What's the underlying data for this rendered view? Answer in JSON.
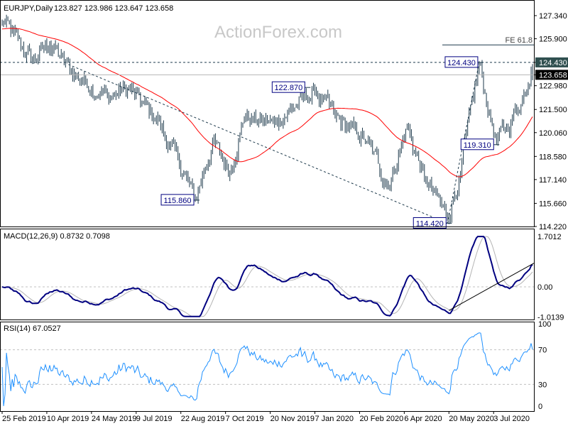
{
  "header": {
    "symbol_tf": "EURJPY,Daily",
    "ohlc": "123.827 123.986 123.647 123.658"
  },
  "watermark": "ActionForex.com",
  "colors": {
    "bars": "#1e3a4c",
    "sma": "#ff0000",
    "macd": "#000080",
    "signal": "#b4b4b4",
    "rsi": "#1e90ff",
    "label_border": "#000080"
  },
  "chart_data": [
    {
      "type": "ohlc",
      "title": "EURJPY,Daily",
      "price_axis_ticks": [
        "127.340",
        "125.900",
        "124.430",
        "123.658",
        "122.980",
        "121.500",
        "120.060",
        "118.580",
        "117.140",
        "115.660",
        "114.220"
      ],
      "ylim": [
        114.22,
        127.34
      ],
      "x_tick_labels": [
        "25 Feb 2019",
        "10 Apr 2019",
        "24 May 2019",
        "9 Jul 2019",
        "22 Aug 2019",
        "7 Oct 2019",
        "20 Nov 2019",
        "7 Jan 2020",
        "20 Feb 2020",
        "6 Apr 2020",
        "20 May 2020",
        "3 Jul 2020"
      ],
      "x_tick_bars": [
        0,
        31,
        62,
        93,
        124,
        155,
        186,
        217,
        248,
        279,
        310,
        341
      ],
      "bar_count": 369,
      "close_path": [
        [
          0,
          127.0
        ],
        [
          8,
          126.1
        ],
        [
          21,
          124.5
        ],
        [
          33,
          125.6
        ],
        [
          48,
          123.9
        ],
        [
          73,
          122.3
        ],
        [
          88,
          122.8
        ],
        [
          108,
          120.8
        ],
        [
          123,
          118.1
        ],
        [
          134,
          115.9
        ],
        [
          146,
          119.5
        ],
        [
          158,
          117.7
        ],
        [
          168,
          121.0
        ],
        [
          188,
          120.6
        ],
        [
          208,
          122.1
        ],
        [
          218,
          122.6
        ],
        [
          231,
          121.0
        ],
        [
          253,
          119.5
        ],
        [
          268,
          116.8
        ],
        [
          281,
          120.4
        ],
        [
          293,
          117.2
        ],
        [
          309,
          114.8
        ],
        [
          318,
          117.5
        ],
        [
          331,
          124.3
        ],
        [
          338,
          121.2
        ],
        [
          343,
          119.5
        ],
        [
          353,
          120.8
        ],
        [
          363,
          122.6
        ],
        [
          367,
          124.1
        ],
        [
          368,
          123.658
        ]
      ],
      "sma_period": 55,
      "levels": {
        "resistance": 124.43,
        "last": 123.658,
        "fe_618": 125.52,
        "fe_label": "FE 61.8"
      },
      "annotations": [
        {
          "text": "115.860",
          "bar": 134,
          "price": 115.86
        },
        {
          "text": "122.870",
          "bar": 211,
          "price": 122.87
        },
        {
          "text": "124.430",
          "bar": 331,
          "price": 124.43
        },
        {
          "text": "119.310",
          "bar": 342,
          "price": 119.31
        },
        {
          "text": "114.420",
          "bar": 309,
          "price": 114.42
        }
      ],
      "trendlines": [
        {
          "style": "dashed",
          "from": [
            46,
            124.3
          ],
          "to": [
            309,
            114.42
          ]
        },
        {
          "style": "dashed",
          "from": [
            309,
            114.42
          ],
          "to": [
            331,
            124.43
          ]
        }
      ]
    },
    {
      "type": "line",
      "title": "MACD(12,26,9) 0.8732 0.7098",
      "ticks": [
        "1.7012",
        "0.00",
        "-1.0139"
      ],
      "ylim": [
        -1.0139,
        1.7012
      ],
      "series": [
        {
          "name": "MACD"
        },
        {
          "name": "Signal"
        }
      ],
      "trendline": {
        "from": [
          310,
          -0.8
        ],
        "to": [
          374,
          0.8
        ]
      }
    },
    {
      "type": "line",
      "title": "RSI(14) 67.0527",
      "ticks": [
        "100",
        "70",
        "30",
        "0"
      ],
      "ylim": [
        0,
        100
      ],
      "levels": [
        70,
        30
      ]
    }
  ]
}
